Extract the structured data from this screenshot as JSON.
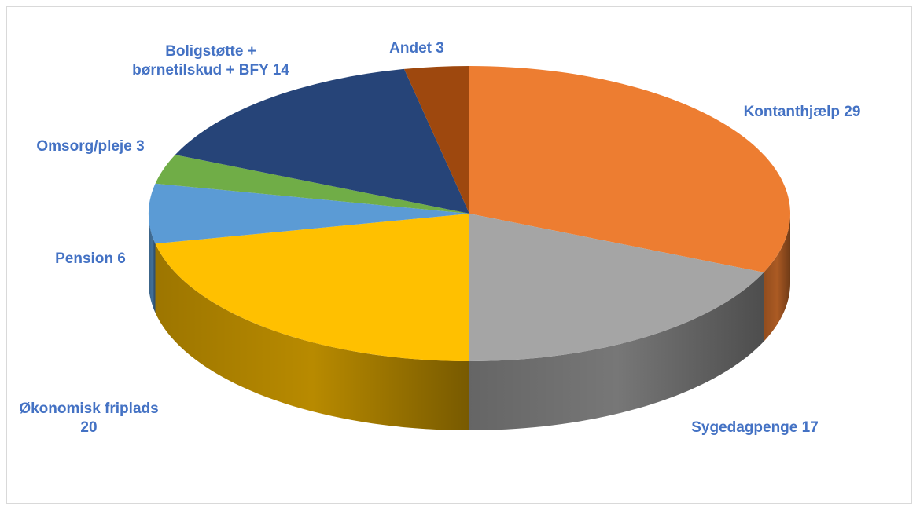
{
  "chart_data": {
    "type": "pie",
    "categories": [
      "Kontanthjælp",
      "Sygedagpenge",
      "Økonomisk friplads",
      "Pension",
      "Omsorg/pleje",
      "Boligstøtte + børnetilskud + BFY",
      "Andet"
    ],
    "values": [
      29,
      17,
      20,
      6,
      3,
      14,
      3
    ],
    "colors": [
      "#ed7d31",
      "#a5a5a5",
      "#ffc000",
      "#5b9bd5",
      "#70ad47",
      "#264478",
      "#9e480e"
    ],
    "label_color": "#4472c4"
  }
}
